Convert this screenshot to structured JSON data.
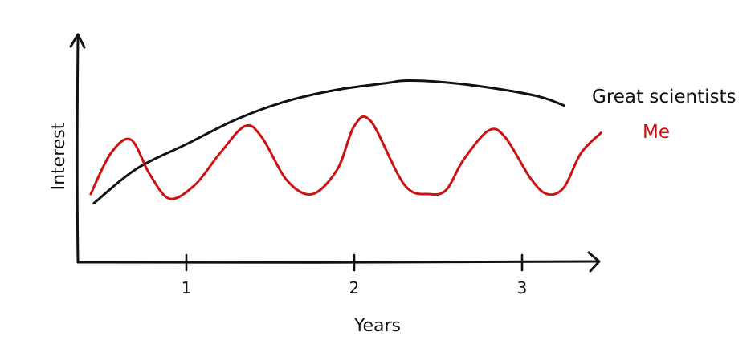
{
  "chart_data": {
    "type": "line",
    "xlabel": "Years",
    "ylabel": "Interest",
    "x_ticks": [
      {
        "value": 1,
        "label": "1"
      },
      {
        "value": 2,
        "label": "2"
      },
      {
        "value": 3,
        "label": "3"
      }
    ],
    "xlim": [
      0.4,
      3.4
    ],
    "ylim": [
      0,
      10
    ],
    "grid": false,
    "legend": "inline-at-line-ends",
    "series": [
      {
        "name": "Great scientists",
        "color": "#111111",
        "points": [
          [
            0.45,
            2.6
          ],
          [
            0.7,
            4.1
          ],
          [
            1.0,
            5.2
          ],
          [
            1.3,
            6.3
          ],
          [
            1.6,
            7.1
          ],
          [
            1.9,
            7.6
          ],
          [
            2.2,
            7.9
          ],
          [
            2.3,
            8.0
          ],
          [
            2.5,
            7.95
          ],
          [
            2.8,
            7.7
          ],
          [
            3.1,
            7.3
          ],
          [
            3.25,
            6.9
          ]
        ]
      },
      {
        "name": "Me",
        "color": "#cc1111",
        "points": [
          [
            0.43,
            3.0
          ],
          [
            0.55,
            4.8
          ],
          [
            0.67,
            5.4
          ],
          [
            0.78,
            3.9
          ],
          [
            0.9,
            2.8
          ],
          [
            1.05,
            3.4
          ],
          [
            1.2,
            4.8
          ],
          [
            1.35,
            6.0
          ],
          [
            1.45,
            5.5
          ],
          [
            1.6,
            3.6
          ],
          [
            1.75,
            3.0
          ],
          [
            1.9,
            4.1
          ],
          [
            2.0,
            6.0
          ],
          [
            2.1,
            6.2
          ],
          [
            2.3,
            3.4
          ],
          [
            2.45,
            3.0
          ],
          [
            2.55,
            3.2
          ],
          [
            2.65,
            4.5
          ],
          [
            2.8,
            5.8
          ],
          [
            2.9,
            5.5
          ],
          [
            3.05,
            3.7
          ],
          [
            3.15,
            3.0
          ],
          [
            3.25,
            3.3
          ],
          [
            3.35,
            4.8
          ],
          [
            3.47,
            5.7
          ]
        ]
      }
    ]
  }
}
